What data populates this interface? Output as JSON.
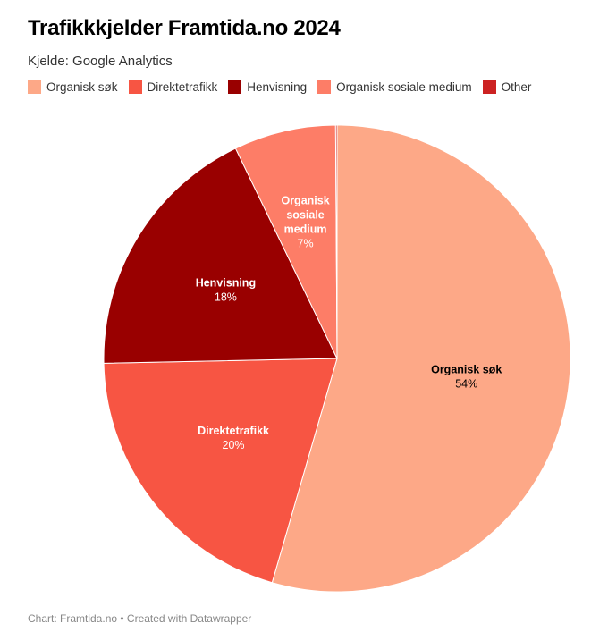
{
  "title": "Trafikkkjelder Framtida.no 2024",
  "subtitle": "Kjelde: Google Analytics",
  "footer": "Chart: Framtida.no • Created with Datawrapper",
  "chart_data": {
    "type": "pie",
    "title": "Trafikkkjelder Framtida.no 2024",
    "legend_position": "top",
    "slices": [
      {
        "name": "Organisk søk",
        "value": 54,
        "label": "54%",
        "color": "#fda887",
        "label_color": "#000000",
        "label_lines": [
          "Organisk søk"
        ]
      },
      {
        "name": "Direktetrafikk",
        "value": 20,
        "label": "20%",
        "color": "#f75543",
        "label_color": "#ffffff",
        "label_lines": [
          "Direktetrafikk"
        ]
      },
      {
        "name": "Henvisning",
        "value": 18,
        "label": "18%",
        "color": "#990000",
        "label_color": "#ffffff",
        "label_lines": [
          "Henvisning"
        ]
      },
      {
        "name": "Organisk sosiale medium",
        "value": 7,
        "label": "7%",
        "color": "#fd7d67",
        "label_color": "#ffffff",
        "label_lines": [
          "Organisk",
          "sosiale",
          "medium"
        ]
      },
      {
        "name": "Other",
        "value": 0.1,
        "label": "",
        "color": "#cc2222",
        "label_color": "#ffffff",
        "label_lines": []
      }
    ]
  }
}
